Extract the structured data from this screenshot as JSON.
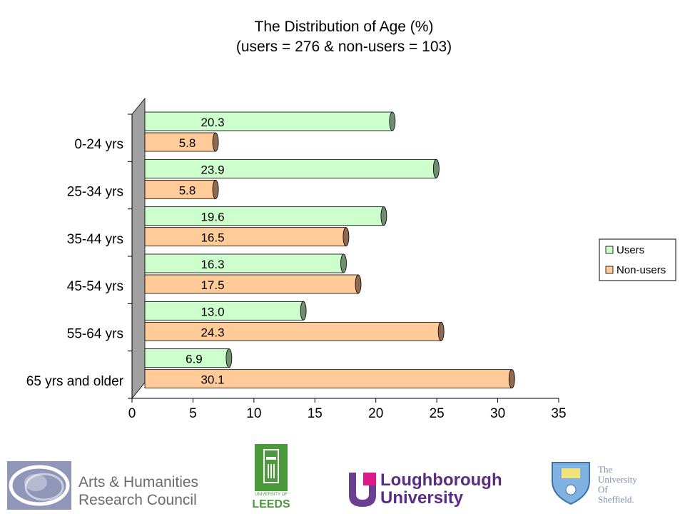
{
  "chart_data": {
    "type": "bar",
    "orientation": "horizontal",
    "title": "The Distribution of Age (%)",
    "subtitle": "(users = 276 & non-users = 103)",
    "categories": [
      "0-24 yrs",
      "25-34 yrs",
      "35-44 yrs",
      "45-54 yrs",
      "55-64 yrs",
      "65 yrs and older"
    ],
    "series": [
      {
        "name": "Users",
        "values": [
          20.3,
          23.9,
          19.6,
          16.3,
          13.0,
          6.9
        ],
        "labels": [
          "20.3",
          "23.9",
          "19.6",
          "16.3",
          "13.0",
          "6.9"
        ]
      },
      {
        "name": "Non-users",
        "values": [
          5.8,
          5.8,
          16.5,
          17.5,
          24.3,
          30.1
        ],
        "labels": [
          "5.8",
          "5.8",
          "16.5",
          "17.5",
          "24.3",
          "30.1"
        ]
      }
    ],
    "xlim": [
      0,
      35
    ],
    "xticks": [
      "0",
      "5",
      "10",
      "15",
      "20",
      "25",
      "30",
      "35"
    ],
    "legend_position": "right",
    "colors": {
      "users_fill": "#ccffcc",
      "users_end": "#6f8f6f",
      "nonusers_fill": "#ffcc99",
      "nonusers_end": "#8f6a50"
    }
  },
  "logos": {
    "ahrc_line1": "Arts & Humanities",
    "ahrc_line2": "Research Council",
    "leeds_small": "UNIVERSITY OF",
    "leeds_big": "LEEDS",
    "lboro_line1": "Loughborough",
    "lboro_line2": "University",
    "sheff_line1": "The",
    "sheff_line2": "University",
    "sheff_line3": "Of",
    "sheff_line4": "Sheffield."
  }
}
